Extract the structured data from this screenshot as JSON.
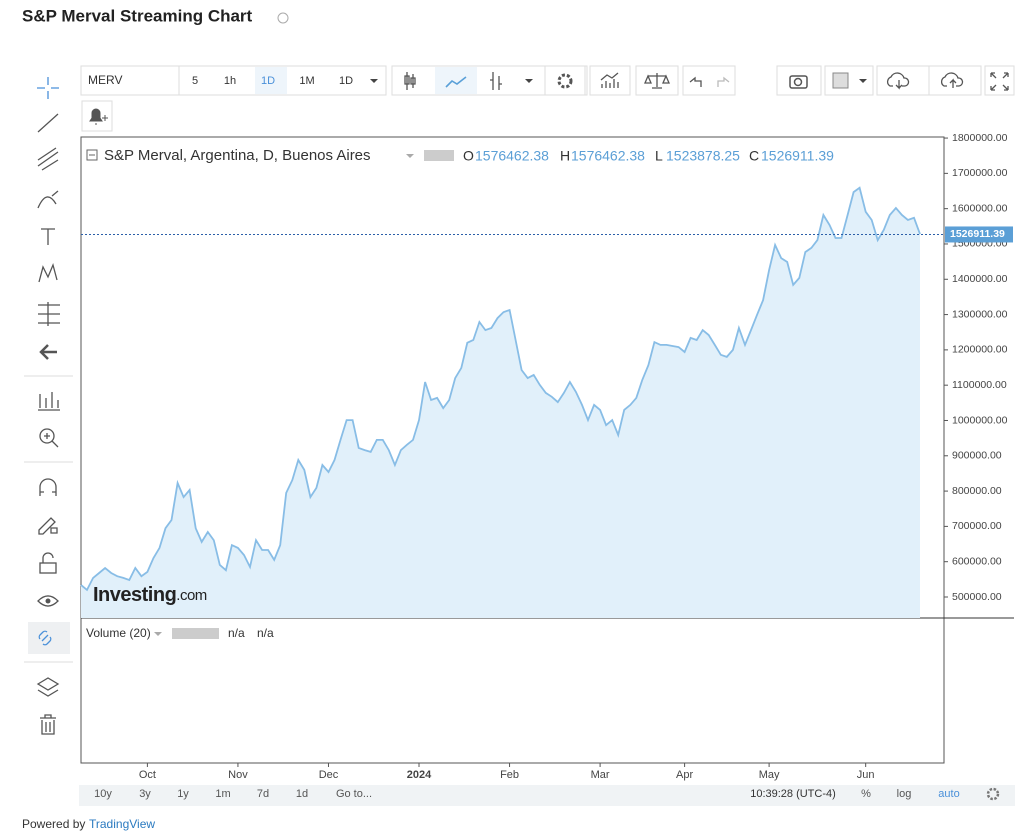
{
  "page_title": "S&P Merval Streaming Chart",
  "toolbar": {
    "symbol": "MERV",
    "intervals": [
      "5",
      "1h",
      "1D",
      "1M",
      "1D"
    ]
  },
  "legend": {
    "series_label": "S&P Merval, Argentina, D, Buenos Aires",
    "open_label": "O",
    "open": 1576462.38,
    "high_label": "H",
    "high": 1576462.38,
    "low_label": "L",
    "low": 1523878.25,
    "close_label": "C",
    "close": 1526911.39
  },
  "watermark": {
    "brand": "Investing",
    "suffix": ".com"
  },
  "volume_pane": {
    "title": "Volume (20)",
    "values": [
      "n/a",
      "n/a"
    ]
  },
  "bottom_bar": {
    "ranges": [
      "10y",
      "3y",
      "1y",
      "1m",
      "7d",
      "1d",
      "Go to..."
    ],
    "time": "10:39:28 (UTC-4)",
    "scale_options": [
      "%",
      "log",
      "auto"
    ]
  },
  "footer": {
    "prefix": "Powered by",
    "link": "TradingView"
  },
  "chart_data": {
    "type": "area",
    "color": "#88bde6",
    "fill_color": "#e1f0fa",
    "last_value": 1526911.39,
    "ylim": [
      440500,
      1803000
    ],
    "yticks": [
      {
        "value": 500000,
        "label": "500000.00"
      },
      {
        "value": 600000,
        "label": "600000.00"
      },
      {
        "value": 700000,
        "label": "700000.00"
      },
      {
        "value": 800000,
        "label": "800000.00"
      },
      {
        "value": 900000,
        "label": "900000.00"
      },
      {
        "value": 1000000,
        "label": "1000000.00"
      },
      {
        "value": 1100000,
        "label": "1100000.00"
      },
      {
        "value": 1200000,
        "label": "1200000.00"
      },
      {
        "value": 1300000,
        "label": "1300000.00"
      },
      {
        "value": 1400000,
        "label": "1400000.00"
      },
      {
        "value": 1500000,
        "label": "1500000.00"
      },
      {
        "value": 1600000,
        "label": "1600000.00"
      },
      {
        "value": 1700000,
        "label": "1700000.00"
      },
      {
        "value": 1800000,
        "label": "1800000.00"
      }
    ],
    "categories": [
      null,
      null,
      null,
      null,
      null,
      null,
      null,
      null,
      null,
      null,
      null,
      "Oct",
      null,
      null,
      null,
      null,
      null,
      null,
      null,
      null,
      null,
      null,
      null,
      null,
      null,
      null,
      "Nov",
      null,
      null,
      null,
      null,
      null,
      null,
      null,
      null,
      null,
      null,
      null,
      null,
      null,
      null,
      "Dec",
      null,
      null,
      null,
      null,
      null,
      null,
      null,
      null,
      null,
      null,
      null,
      null,
      null,
      null,
      "2024",
      null,
      null,
      null,
      null,
      null,
      null,
      null,
      null,
      null,
      null,
      null,
      null,
      null,
      null,
      "Feb",
      null,
      null,
      null,
      null,
      null,
      null,
      null,
      null,
      null,
      null,
      null,
      null,
      null,
      null,
      "Mar",
      null,
      null,
      null,
      null,
      null,
      null,
      null,
      null,
      null,
      null,
      null,
      null,
      null,
      "Apr",
      null,
      null,
      null,
      null,
      null,
      null,
      null,
      null,
      null,
      null,
      null,
      null,
      null,
      "May",
      null,
      null,
      null,
      null,
      null,
      null,
      null,
      null,
      null,
      null,
      null,
      null,
      null,
      null,
      null,
      "Jun",
      null,
      null,
      null,
      null,
      null,
      null,
      null,
      null,
      null
    ],
    "values": [
      534000,
      520000,
      554000,
      568000,
      582000,
      568000,
      559000,
      554000,
      548000,
      582000,
      559000,
      571000,
      610000,
      639000,
      695000,
      718000,
      823000,
      783000,
      803000,
      695000,
      656000,
      684000,
      661000,
      591000,
      576000,
      647000,
      639000,
      619000,
      585000,
      661000,
      633000,
      633000,
      605000,
      647000,
      795000,
      831000,
      888000,
      860000,
      783000,
      809000,
      874000,
      854000,
      888000,
      945000,
      1001000,
      1001000,
      922000,
      916000,
      911000,
      945000,
      945000,
      916000,
      874000,
      916000,
      931000,
      945000,
      1001000,
      1109000,
      1058000,
      1064000,
      1035000,
      1058000,
      1120000,
      1149000,
      1220000,
      1228000,
      1279000,
      1256000,
      1262000,
      1290000,
      1307000,
      1313000,
      1228000,
      1143000,
      1120000,
      1129000,
      1101000,
      1078000,
      1067000,
      1052000,
      1078000,
      1109000,
      1081000,
      1044000,
      1001000,
      1044000,
      1030000,
      987000,
      1001000,
      959000,
      1030000,
      1044000,
      1064000,
      1115000,
      1157000,
      1222000,
      1214000,
      1214000,
      1211000,
      1208000,
      1194000,
      1234000,
      1228000,
      1256000,
      1242000,
      1214000,
      1186000,
      1180000,
      1200000,
      1262000,
      1214000,
      1256000,
      1299000,
      1341000,
      1426000,
      1497000,
      1460000,
      1449000,
      1384000,
      1404000,
      1477000,
      1489000,
      1511000,
      1582000,
      1554000,
      1517000,
      1517000,
      1582000,
      1647000,
      1659000,
      1591000,
      1568000,
      1511000,
      1540000,
      1582000,
      1602000,
      1582000,
      1568000,
      1574000,
      1528000
    ]
  }
}
